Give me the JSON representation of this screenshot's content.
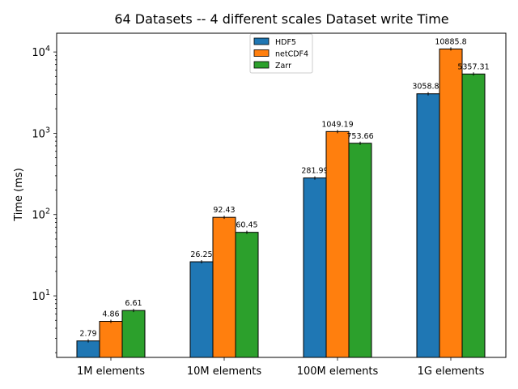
{
  "chart_data": {
    "type": "bar",
    "title": "64 Datasets -- 4 different scales Dataset write Time",
    "xlabel": "",
    "ylabel": "Time (ms)",
    "yscale": "log",
    "ylim": [
      1.75,
      17000
    ],
    "categories": [
      "1M elements",
      "10M elements",
      "100M elements",
      "1G elements"
    ],
    "series": [
      {
        "name": "HDF5",
        "color": "#1f77b4",
        "values": [
          2.79,
          26.25,
          281.99,
          3058.86
        ],
        "labels": [
          "2.79",
          "26.25",
          "281.99",
          "3058.86"
        ]
      },
      {
        "name": "netCDF4",
        "color": "#ff7f0e",
        "values": [
          4.86,
          92.43,
          1049.19,
          10885.8
        ],
        "labels": [
          "4.86",
          "92.43",
          "1049.19",
          "10885.8"
        ]
      },
      {
        "name": "Zarr",
        "color": "#2ca02c",
        "values": [
          6.61,
          60.45,
          753.66,
          5357.31
        ],
        "labels": [
          "6.61",
          "60.45",
          "753.66",
          "5357.31"
        ]
      }
    ],
    "yticks": [
      {
        "value": 10,
        "base": "10",
        "exp": "1"
      },
      {
        "value": 100,
        "base": "10",
        "exp": "2"
      },
      {
        "value": 1000,
        "base": "10",
        "exp": "3"
      },
      {
        "value": 10000,
        "base": "10",
        "exp": "4"
      }
    ],
    "legend": "upper-center",
    "grid": false
  }
}
